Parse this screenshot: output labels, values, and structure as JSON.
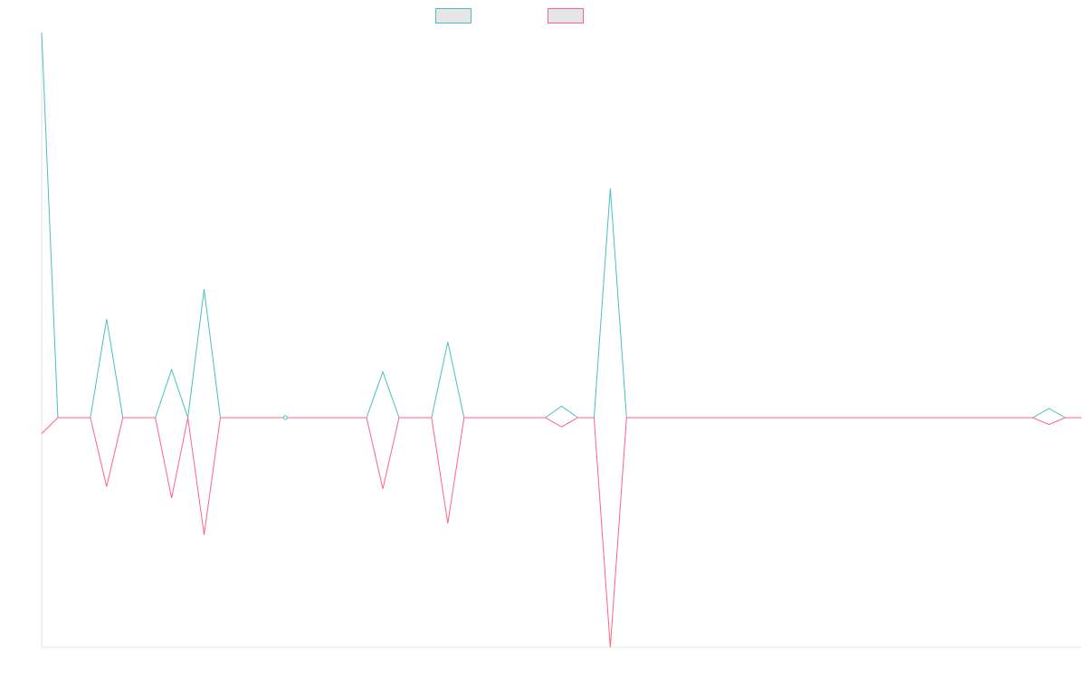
{
  "chart_data": {
    "type": "line",
    "title": "",
    "xlabel": "",
    "ylabel": "",
    "grid": false,
    "legend_position": "top-center",
    "x_count": 65,
    "ylim": [
      -1,
      1.68
    ],
    "series": [
      {
        "color": "#4bc0c0",
        "legend_fill": "#e6e6e6",
        "points": [
          [
            0,
            1.68
          ],
          [
            1,
            0
          ],
          [
            3,
            0
          ],
          [
            4,
            0.43
          ],
          [
            5,
            0
          ],
          [
            7,
            0
          ],
          [
            8,
            0.21
          ],
          [
            9,
            0
          ],
          [
            10,
            0.56
          ],
          [
            11,
            0
          ],
          [
            14,
            0
          ],
          [
            15,
            0
          ],
          [
            20,
            0
          ],
          [
            21,
            0.2
          ],
          [
            22,
            0
          ],
          [
            24,
            0
          ],
          [
            25,
            0.33
          ],
          [
            26,
            0
          ],
          [
            31,
            0
          ],
          [
            32,
            0.05
          ],
          [
            33,
            0
          ],
          [
            34,
            0
          ],
          [
            35,
            1.0
          ],
          [
            36,
            0
          ],
          [
            61,
            0
          ],
          [
            62,
            0.04
          ],
          [
            63,
            0
          ],
          [
            64,
            0
          ]
        ]
      },
      {
        "color": "#ff6384",
        "legend_fill": "#e6e6e6",
        "points": [
          [
            0,
            -0.07
          ],
          [
            1,
            0
          ],
          [
            3,
            0
          ],
          [
            4,
            -0.3
          ],
          [
            5,
            0
          ],
          [
            7,
            0
          ],
          [
            8,
            -0.35
          ],
          [
            9,
            0
          ],
          [
            10,
            -0.51
          ],
          [
            11,
            0
          ],
          [
            14,
            0
          ],
          [
            15,
            0
          ],
          [
            20,
            0
          ],
          [
            21,
            -0.31
          ],
          [
            22,
            0
          ],
          [
            24,
            0
          ],
          [
            25,
            -0.46
          ],
          [
            26,
            0
          ],
          [
            31,
            0
          ],
          [
            32,
            -0.04
          ],
          [
            33,
            0
          ],
          [
            34,
            0
          ],
          [
            35,
            -1.0
          ],
          [
            36,
            0
          ],
          [
            61,
            0
          ],
          [
            62,
            -0.03
          ],
          [
            63,
            0
          ],
          [
            64,
            0
          ]
        ]
      }
    ],
    "markers": [
      {
        "x": 15,
        "y": 0,
        "color": "#4bc0c0"
      }
    ]
  }
}
